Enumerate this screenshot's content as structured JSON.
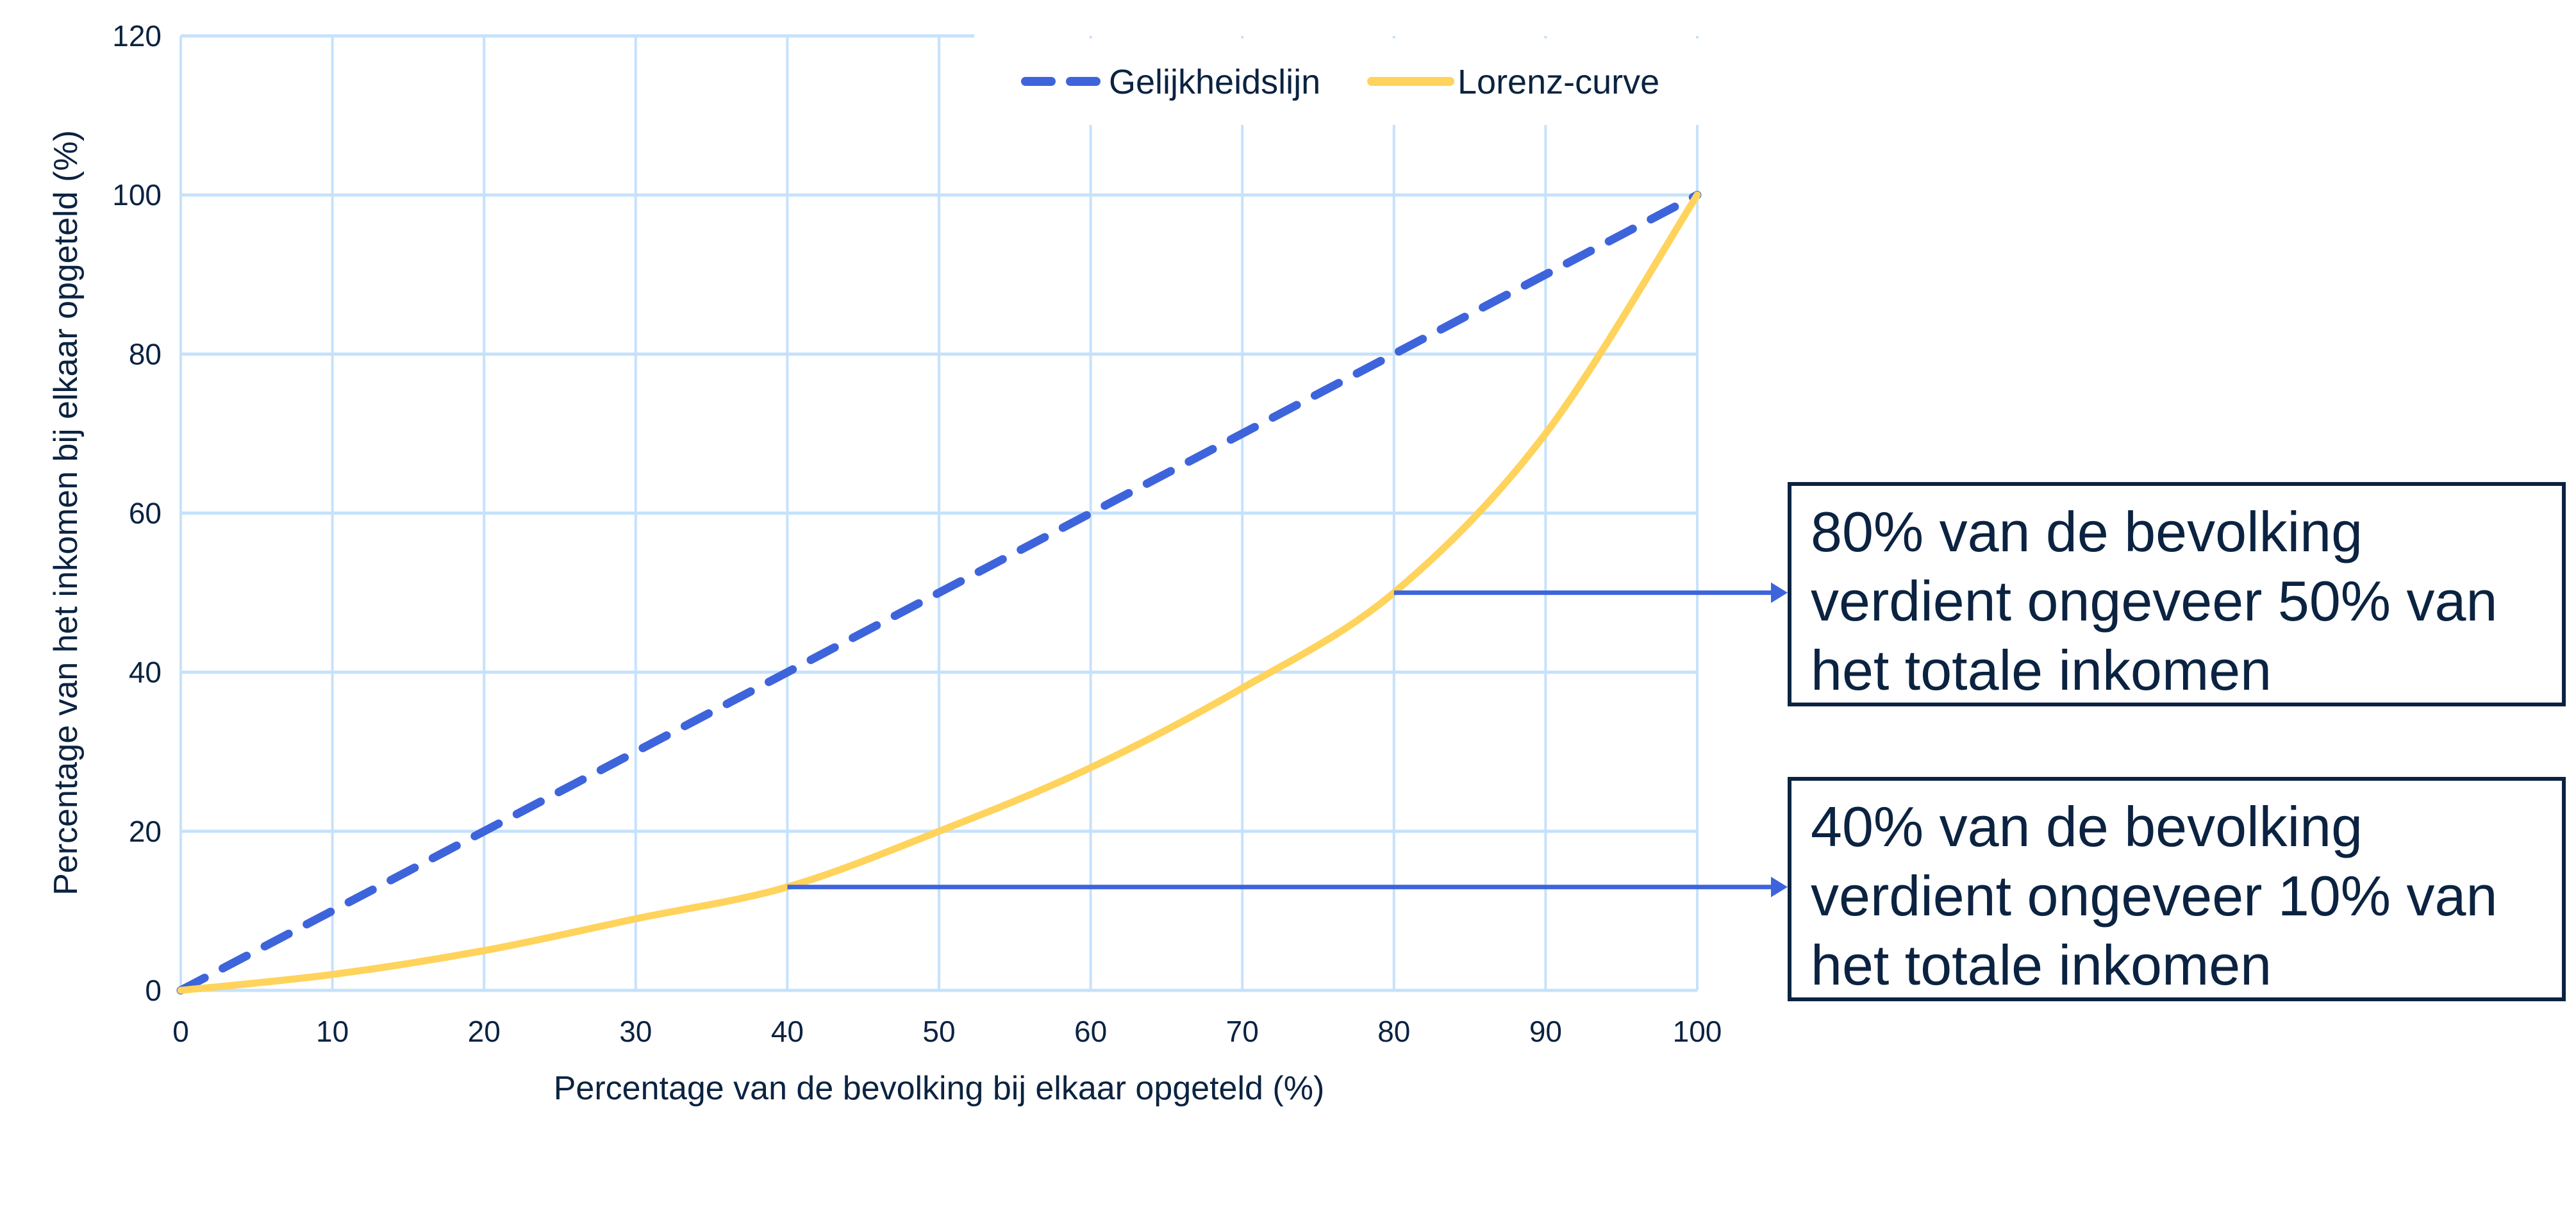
{
  "chart_data": {
    "type": "line",
    "title": "",
    "xlabel": "Percentage van de bevolking bij elkaar opgeteld (%)",
    "ylabel": "Percentage van het inkomen bij elkaar opgeteld (%)",
    "xlim": [
      0,
      100
    ],
    "ylim": [
      0,
      120
    ],
    "xticks": [
      0,
      10,
      20,
      30,
      40,
      50,
      60,
      70,
      80,
      90,
      100
    ],
    "yticks": [
      0,
      20,
      40,
      60,
      80,
      100,
      120
    ],
    "grid": true,
    "legend_position": "top-right",
    "series": [
      {
        "name": "Gelijkheidslijn",
        "style": "dashed",
        "color": "#3e64dc",
        "x": [
          0,
          100
        ],
        "y": [
          0,
          100
        ]
      },
      {
        "name": "Lorenz-curve",
        "style": "solid",
        "color": "#ffd35c",
        "x": [
          0,
          10,
          20,
          30,
          40,
          50,
          60,
          70,
          80,
          90,
          100
        ],
        "y": [
          0,
          2,
          5,
          9,
          13,
          20,
          28,
          38,
          50,
          70,
          100
        ]
      }
    ],
    "annotations": [
      {
        "text": "80% van de bevolking verdient ongeveer 50% van het totale inkomen",
        "arrow_from": [
          80,
          50
        ]
      },
      {
        "text": "40% van de bevolking verdient ongeveer 10% van het totale inkomen",
        "arrow_from": [
          40,
          13
        ]
      }
    ]
  },
  "colors": {
    "grid": "#c6e2fb",
    "text": "#0b2341",
    "arrow": "#3e64dc"
  }
}
